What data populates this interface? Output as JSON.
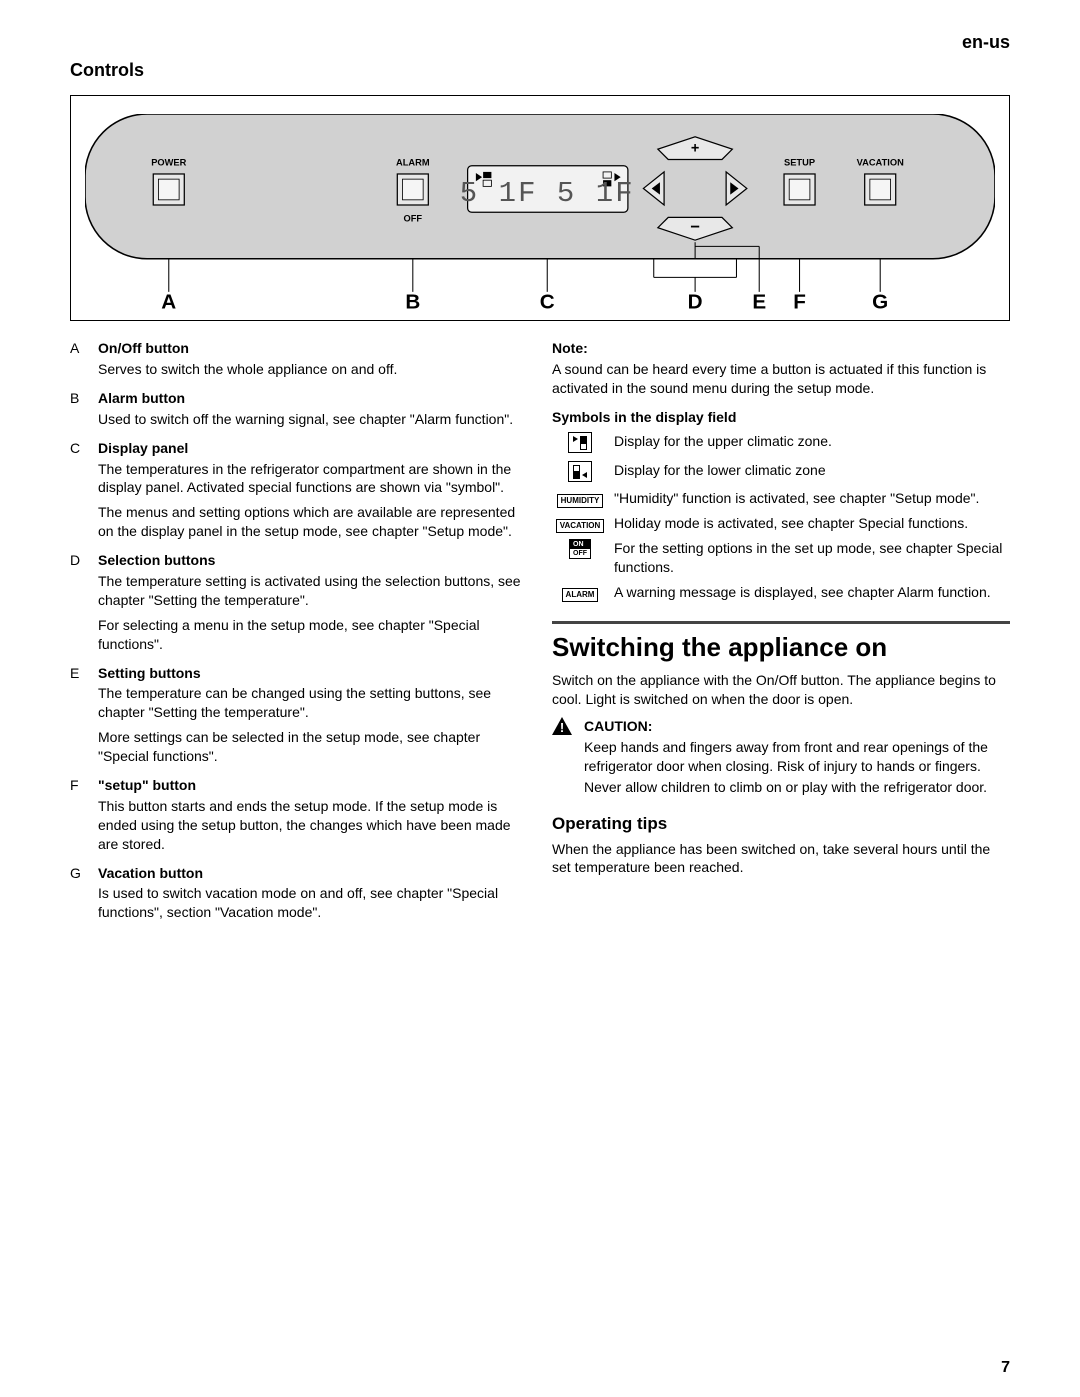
{
  "language": "en-us",
  "section_title": "Controls",
  "page_number": "7",
  "panel": {
    "bg_color": "#d1d1d1",
    "btn_fill": "#e8e8e8",
    "lcd_bg": "#f2f2f2",
    "lcd_text": "5 1F  5 1F",
    "labels": {
      "power": "POWER",
      "alarm": "ALARM",
      "off": "OFF",
      "setup": "SETUP",
      "vacation": "VACATION"
    },
    "letters": [
      "A",
      "B",
      "C",
      "D",
      "E",
      "F",
      "G"
    ]
  },
  "controls": [
    {
      "letter": "A",
      "title": "On/Off button",
      "paras": [
        "Serves to switch the whole appliance on and off."
      ]
    },
    {
      "letter": "B",
      "title": "Alarm button",
      "paras": [
        "Used to switch off the warning signal, see chapter \"Alarm function\"."
      ]
    },
    {
      "letter": "C",
      "title": "Display panel",
      "paras": [
        "The temperatures in the refrigerator compartment are shown in the display panel. Activated special functions are shown via \"symbol\".",
        "The menus and setting options which are available are represented on the display panel in the setup mode, see chapter \"Setup mode\"."
      ]
    },
    {
      "letter": "D",
      "title": "Selection buttons",
      "paras": [
        "The temperature setting is activated using the selection buttons, see chapter \"Setting the temperature\".",
        "For selecting a menu in the setup mode, see chapter \"Special functions\"."
      ]
    },
    {
      "letter": "E",
      "title": "Setting buttons",
      "paras": [
        "The temperature can be changed using the setting buttons, see chapter \"Setting the temperature\".",
        "More settings can be selected in the setup mode, see chapter \"Special functions\"."
      ]
    },
    {
      "letter": "F",
      "title": "\"setup\" button",
      "paras": [
        "This button starts and ends the setup mode. If the setup mode is ended using the setup button, the changes which have been made are stored."
      ]
    },
    {
      "letter": "G",
      "title": "Vacation button",
      "paras": [
        "Is used to switch vacation mode on and off, see chapter \"Special functions\", section \"Vacation mode\"."
      ]
    }
  ],
  "note": {
    "head": "Note:",
    "body": "A sound can be heard every time a button is actuated if this function is activated in the sound menu during the setup mode."
  },
  "symbols_head": "Symbols in the display field",
  "symbols": [
    {
      "type": "upper",
      "text": "Display for the upper climatic zone."
    },
    {
      "type": "lower",
      "text": "Display for the lower climatic zone"
    },
    {
      "type": "badge",
      "badge": "HUMIDITY",
      "text": "\"Humidity\" function is activated, see chapter \"Setup mode\"."
    },
    {
      "type": "badge",
      "badge": "VACATION",
      "text": "Holiday mode is activated, see chapter Special functions."
    },
    {
      "type": "onoff",
      "on": "ON",
      "off": "OFF",
      "text": "For the setting options in the set up mode, see chapter Special functions."
    },
    {
      "type": "badge",
      "badge": "ALARM",
      "text": "A warning message is displayed, see chapter Alarm function."
    }
  ],
  "switching": {
    "title": "Switching the appliance on",
    "intro": "Switch on the appliance with the On/Off button. The appliance begins to cool. Light is switched on when the door is open.",
    "caution_head": "CAUTION:",
    "caution": [
      "Keep hands and fingers away from front and rear openings of the refrigerator door when closing. Risk of injury to hands or fingers.",
      "Never allow children to climb on or play with the refrigerator door."
    ]
  },
  "optips": {
    "title": "Operating tips",
    "body": "When the appliance has been switched on, take several hours until the set temperature been reached."
  }
}
